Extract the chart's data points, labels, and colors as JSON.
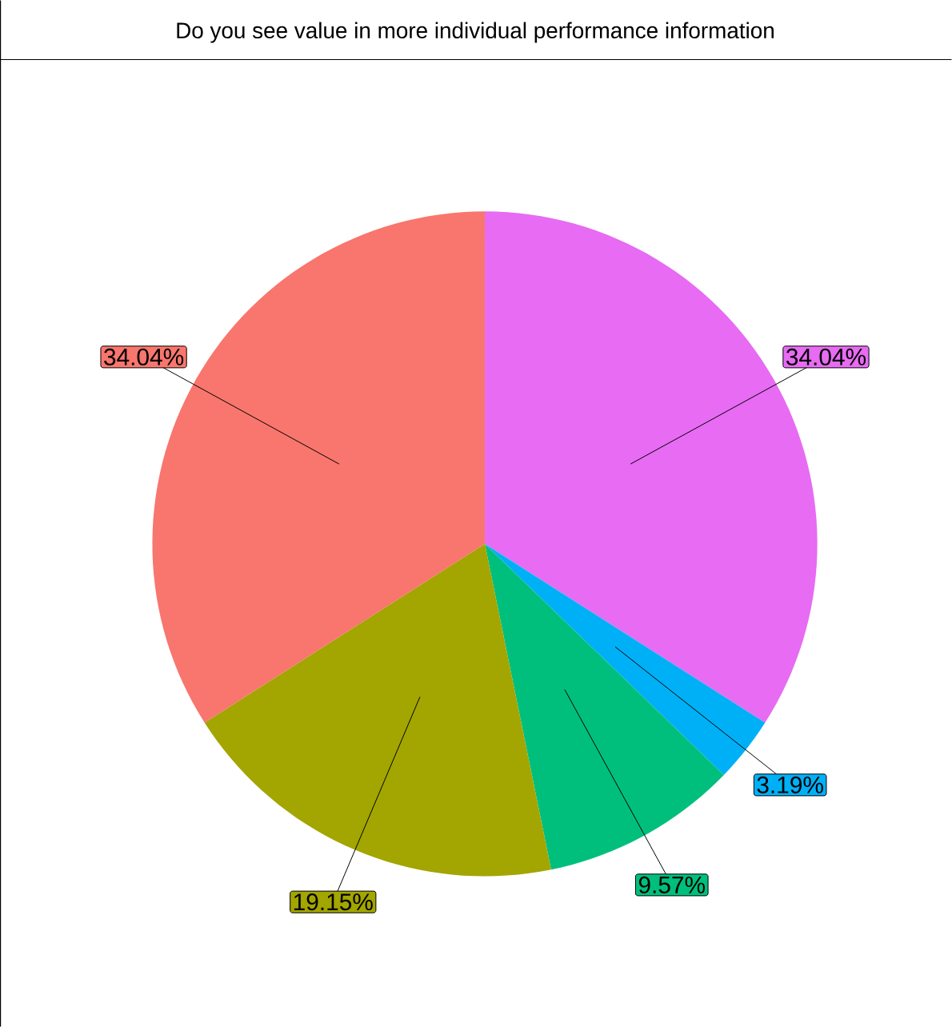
{
  "chart_data": {
    "type": "pie",
    "title": "Do you see value in more individual performance information",
    "categories": [
      null,
      null,
      null,
      null,
      null
    ],
    "values": [
      34.04,
      3.19,
      9.57,
      19.15,
      34.04
    ],
    "value_labels": [
      "34.04%",
      "3.19%",
      "9.57%",
      "19.15%",
      "34.04%"
    ],
    "colors": [
      "#e76bf3",
      "#00b0f6",
      "#00bf7d",
      "#a3a500",
      "#f8766d"
    ]
  }
}
